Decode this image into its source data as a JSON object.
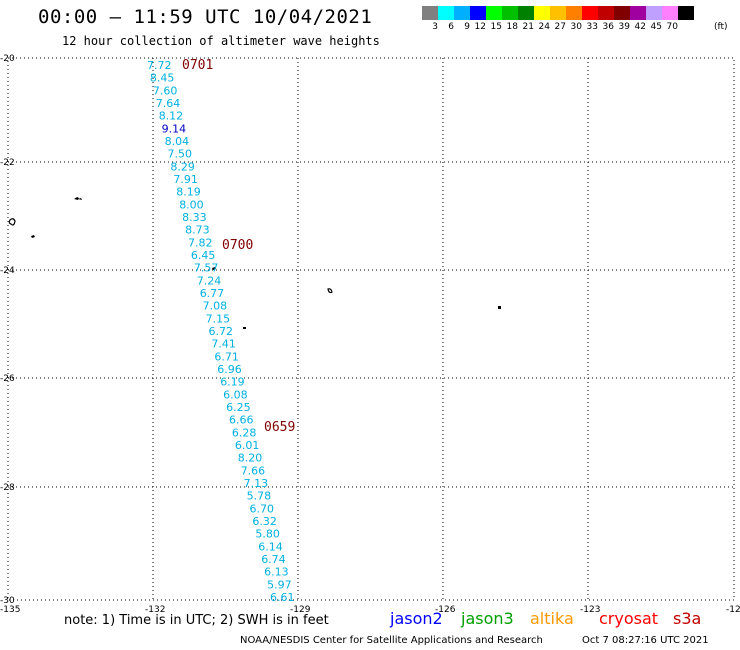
{
  "header": {
    "title": "00:00 – 11:59 UTC 10/04/2021",
    "subtitle": "12 hour collection of altimeter wave heights"
  },
  "legend": {
    "colors": [
      "#808080",
      "#00ffff",
      "#00b0ff",
      "#0000ff",
      "#00ff00",
      "#00c000",
      "#008000",
      "#ffff00",
      "#ffc000",
      "#ff8000",
      "#ff0000",
      "#c00000",
      "#800000",
      "#a000a0",
      "#c0a0ff",
      "#ff80ff",
      "#000000"
    ],
    "labels": [
      "3",
      "6",
      "9",
      "12",
      "15",
      "18",
      "21",
      "24",
      "27",
      "30",
      "33",
      "36",
      "39",
      "42",
      "45",
      "70"
    ],
    "unit": "(ft)"
  },
  "axes": {
    "lat_labels": [
      "-20",
      "-22",
      "-24",
      "-26",
      "-28",
      "-30"
    ],
    "lon_labels": [
      "-135",
      "-132",
      "-129",
      "-126",
      "-123",
      "-120"
    ]
  },
  "time_labels": [
    "0701",
    "0700",
    "0659"
  ],
  "wave_heights": [
    "7.72",
    "8.45",
    "7.60",
    "7.64",
    "8.12",
    "9.14",
    "8.04",
    "7.50",
    "8.29",
    "7.91",
    "8.19",
    "8.00",
    "8.33",
    "8.73",
    "7.82",
    "6.45",
    "7.57",
    "7.24",
    "6.77",
    "7.08",
    "7.15",
    "6.72",
    "7.41",
    "6.71",
    "6.96",
    "6.19",
    "6.08",
    "6.25",
    "6.66",
    "6.28",
    "6.01",
    "8.20",
    "7.66",
    "7.13",
    "5.78",
    "6.70",
    "6.32",
    "5.80",
    "6.14",
    "6.74",
    "6.13",
    "5.97",
    "6.61"
  ],
  "wave_colors": {
    "default": "#00b0e0",
    "highlight": "#0000c0"
  },
  "footer": {
    "note": "note:  1) Time is in UTC;  2) SWH is in feet",
    "satellites": [
      {
        "name": "jason2",
        "color": "#0000ff"
      },
      {
        "name": "jason3",
        "color": "#00a000"
      },
      {
        "name": "altika",
        "color": "#ff9900"
      },
      {
        "name": "cryosat",
        "color": "#ff0000"
      },
      {
        "name": "s3a",
        "color": "#c00000"
      }
    ],
    "credit": "NOAA/NESDIS Center for Satellite Applications and Research",
    "timestamp": "Oct  7 08:27:16 UTC 2021"
  }
}
